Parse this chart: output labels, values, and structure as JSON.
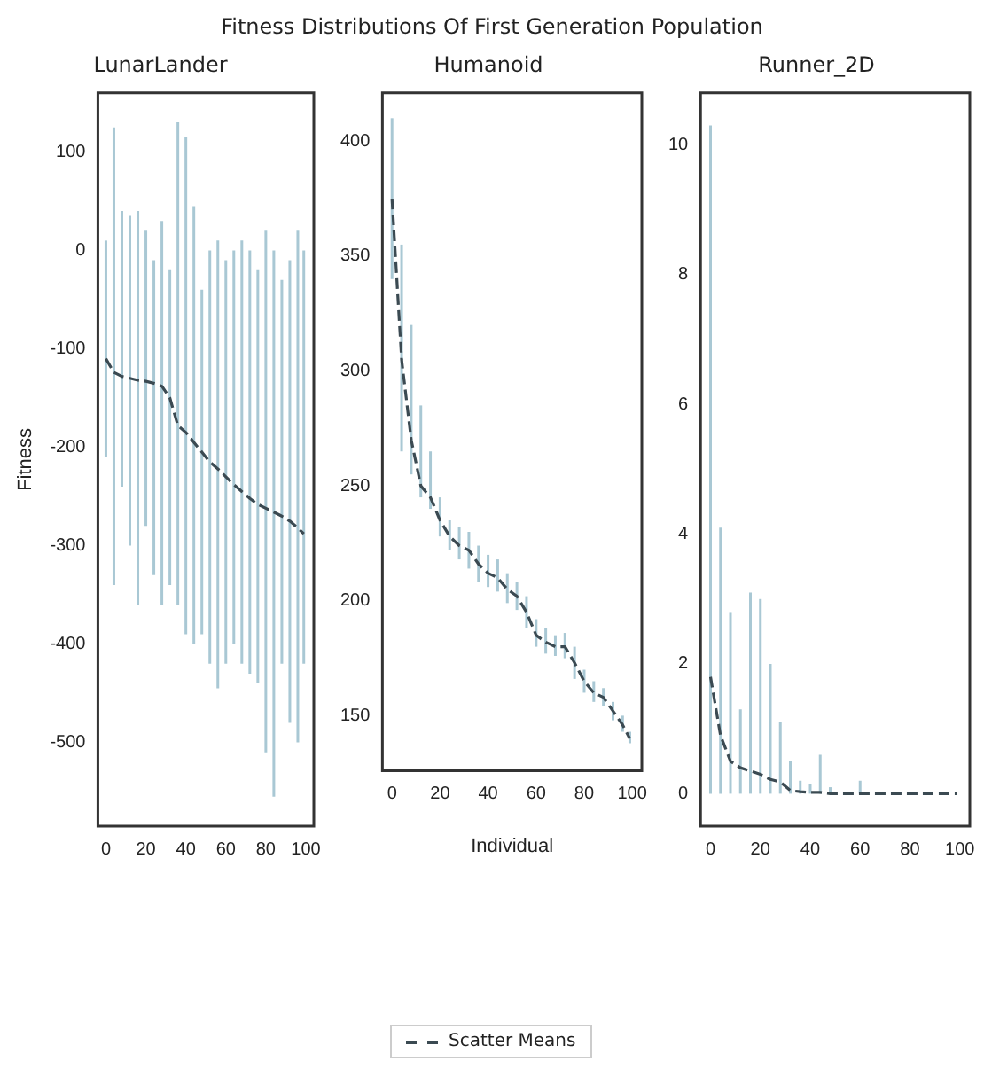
{
  "chart_data": [
    {
      "type": "line",
      "title": "LunarLander",
      "ylabel": "Fitness",
      "annotations": [
        "Fitness Distributions Of First Generation Population"
      ],
      "x": [
        0,
        4,
        8,
        12,
        16,
        20,
        24,
        28,
        32,
        36,
        40,
        44,
        48,
        52,
        56,
        60,
        64,
        68,
        72,
        76,
        80,
        84,
        88,
        92,
        96,
        99
      ],
      "xlim": [
        -4,
        104
      ],
      "xticks": [
        0,
        20,
        40,
        60,
        80,
        100
      ],
      "ylim": [
        -585,
        160
      ],
      "yticks": [
        -500,
        -400,
        -300,
        -200,
        -100,
        0,
        100
      ],
      "grid": false,
      "legend": false,
      "marker": "none",
      "line_style": "dashed",
      "series": [
        {
          "color": "#3b4a52",
          "values": [
            -110,
            -124,
            -128,
            -130,
            -132,
            -133,
            -135,
            -138,
            -150,
            -178,
            -185,
            -195,
            -205,
            -215,
            -222,
            -230,
            -238,
            -245,
            -252,
            -258,
            -262,
            -266,
            -270,
            -275,
            -282,
            -288
          ],
          "errors": [
            [
              -210,
              10
            ],
            [
              -340,
              125
            ],
            [
              -240,
              40
            ],
            [
              -300,
              35
            ],
            [
              -360,
              40
            ],
            [
              -280,
              20
            ],
            [
              -330,
              -10
            ],
            [
              -360,
              30
            ],
            [
              -340,
              -20
            ],
            [
              -360,
              130
            ],
            [
              -390,
              115
            ],
            [
              -400,
              45
            ],
            [
              -390,
              -40
            ],
            [
              -420,
              0
            ],
            [
              -445,
              10
            ],
            [
              -420,
              -10
            ],
            [
              -400,
              0
            ],
            [
              -420,
              10
            ],
            [
              -430,
              0
            ],
            [
              -440,
              -20
            ],
            [
              -510,
              20
            ],
            [
              -555,
              0
            ],
            [
              -420,
              -30
            ],
            [
              -480,
              -10
            ],
            [
              -500,
              20
            ],
            [
              -420,
              0
            ]
          ]
        }
      ]
    },
    {
      "type": "line",
      "title": "Humanoid",
      "xlabel": "Individual",
      "x": [
        0,
        4,
        8,
        12,
        16,
        20,
        24,
        28,
        32,
        36,
        40,
        44,
        48,
        52,
        56,
        60,
        64,
        68,
        72,
        76,
        80,
        84,
        88,
        92,
        96,
        99
      ],
      "xlim": [
        -4,
        104
      ],
      "xticks": [
        0,
        20,
        40,
        60,
        80,
        100
      ],
      "ylim": [
        126,
        421
      ],
      "yticks": [
        150,
        200,
        250,
        300,
        350,
        400
      ],
      "grid": false,
      "legend": "bottom",
      "marker": "none",
      "line_style": "dashed",
      "series": [
        {
          "name": "Scatter Means",
          "color": "#3b4a52",
          "values": [
            375,
            305,
            270,
            250,
            245,
            235,
            228,
            224,
            222,
            216,
            212,
            210,
            205,
            202,
            195,
            185,
            182,
            180,
            180,
            173,
            165,
            160,
            158,
            152,
            146,
            140
          ],
          "errors": [
            [
              340,
              410
            ],
            [
              265,
              355
            ],
            [
              255,
              320
            ],
            [
              245,
              285
            ],
            [
              240,
              265
            ],
            [
              228,
              245
            ],
            [
              222,
              235
            ],
            [
              218,
              232
            ],
            [
              214,
              230
            ],
            [
              208,
              224
            ],
            [
              206,
              220
            ],
            [
              204,
              218
            ],
            [
              199,
              212
            ],
            [
              196,
              208
            ],
            [
              188,
              202
            ],
            [
              180,
              192
            ],
            [
              177,
              188
            ],
            [
              176,
              185
            ],
            [
              175,
              186
            ],
            [
              166,
              180
            ],
            [
              160,
              170
            ],
            [
              156,
              165
            ],
            [
              154,
              162
            ],
            [
              148,
              156
            ],
            [
              143,
              150
            ],
            [
              138,
              143
            ]
          ]
        }
      ]
    },
    {
      "type": "line",
      "title": "Runner_2D",
      "x": [
        0,
        4,
        8,
        12,
        16,
        20,
        24,
        28,
        32,
        36,
        40,
        44,
        48,
        52,
        56,
        60,
        64,
        68,
        72,
        76,
        80,
        84,
        88,
        92,
        96,
        99
      ],
      "xlim": [
        -4,
        104
      ],
      "xticks": [
        0,
        20,
        40,
        60,
        80,
        100
      ],
      "ylim": [
        -0.5,
        10.8
      ],
      "yticks": [
        0,
        2,
        4,
        6,
        8,
        10
      ],
      "grid": false,
      "legend": false,
      "marker": "none",
      "line_style": "dashed",
      "series": [
        {
          "color": "#3b4a52",
          "values": [
            1.8,
            0.9,
            0.5,
            0.4,
            0.35,
            0.3,
            0.22,
            0.18,
            0.05,
            0.03,
            0.02,
            0.02,
            0,
            0,
            0,
            0,
            0,
            0,
            0,
            0,
            0,
            0,
            0,
            0,
            0,
            0
          ],
          "errors": [
            [
              0,
              10.3
            ],
            [
              0,
              4.1
            ],
            [
              0,
              2.8
            ],
            [
              0,
              1.3
            ],
            [
              0,
              3.1
            ],
            [
              0,
              3
            ],
            [
              0,
              2
            ],
            [
              0,
              1.1
            ],
            [
              0,
              0.5
            ],
            [
              0,
              0.2
            ],
            [
              0,
              0.15
            ],
            [
              0,
              0.6
            ],
            [
              0,
              0.1
            ],
            null,
            null,
            [
              0,
              0.2
            ],
            null,
            null,
            null,
            null,
            null,
            null,
            null,
            null,
            null,
            null
          ]
        }
      ]
    }
  ]
}
